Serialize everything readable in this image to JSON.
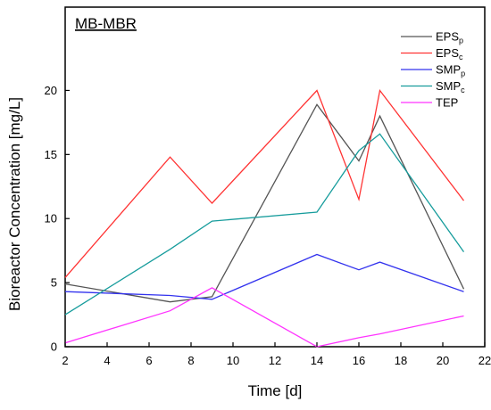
{
  "chart_data": {
    "type": "line",
    "title": "MB-MBR",
    "xlabel": "Time [d]",
    "ylabel": "Bioreactor Concentration [mg/L]",
    "xlim": [
      2,
      22
    ],
    "ylim": [
      0,
      26.5
    ],
    "xticks": [
      2,
      4,
      6,
      8,
      10,
      12,
      14,
      16,
      18,
      20,
      22
    ],
    "yticks": [
      0,
      5,
      10,
      15,
      20
    ],
    "grid": false,
    "legend_position": "top-right",
    "series": [
      {
        "name": "EPS",
        "subscript": "p",
        "color": "#555555",
        "x": [
          2,
          7,
          9,
          14,
          16,
          17,
          21
        ],
        "y": [
          4.9,
          3.5,
          3.9,
          18.9,
          14.5,
          18.0,
          4.5
        ]
      },
      {
        "name": "EPS",
        "subscript": "c",
        "color": "#ff3333",
        "x": [
          2,
          7,
          9,
          14,
          16,
          17,
          21
        ],
        "y": [
          5.4,
          14.8,
          11.2,
          20.0,
          11.5,
          20.0,
          11.4
        ]
      },
      {
        "name": "SMP",
        "subscript": "p",
        "color": "#3333ee",
        "x": [
          2,
          7,
          9,
          14,
          16,
          17,
          21
        ],
        "y": [
          4.3,
          4.0,
          3.7,
          7.2,
          6.0,
          6.6,
          4.3
        ]
      },
      {
        "name": "SMP",
        "subscript": "c",
        "color": "#169c9c",
        "x": [
          2,
          7,
          9,
          14,
          16,
          17,
          21
        ],
        "y": [
          2.5,
          7.6,
          9.8,
          10.5,
          15.3,
          16.6,
          7.4
        ]
      },
      {
        "name": "TEP",
        "subscript": "",
        "color": "#ff33ff",
        "x": [
          2,
          7,
          9,
          14,
          16,
          17,
          21
        ],
        "y": [
          0.3,
          2.8,
          4.6,
          0.0,
          0.7,
          1.0,
          2.4
        ]
      }
    ]
  }
}
